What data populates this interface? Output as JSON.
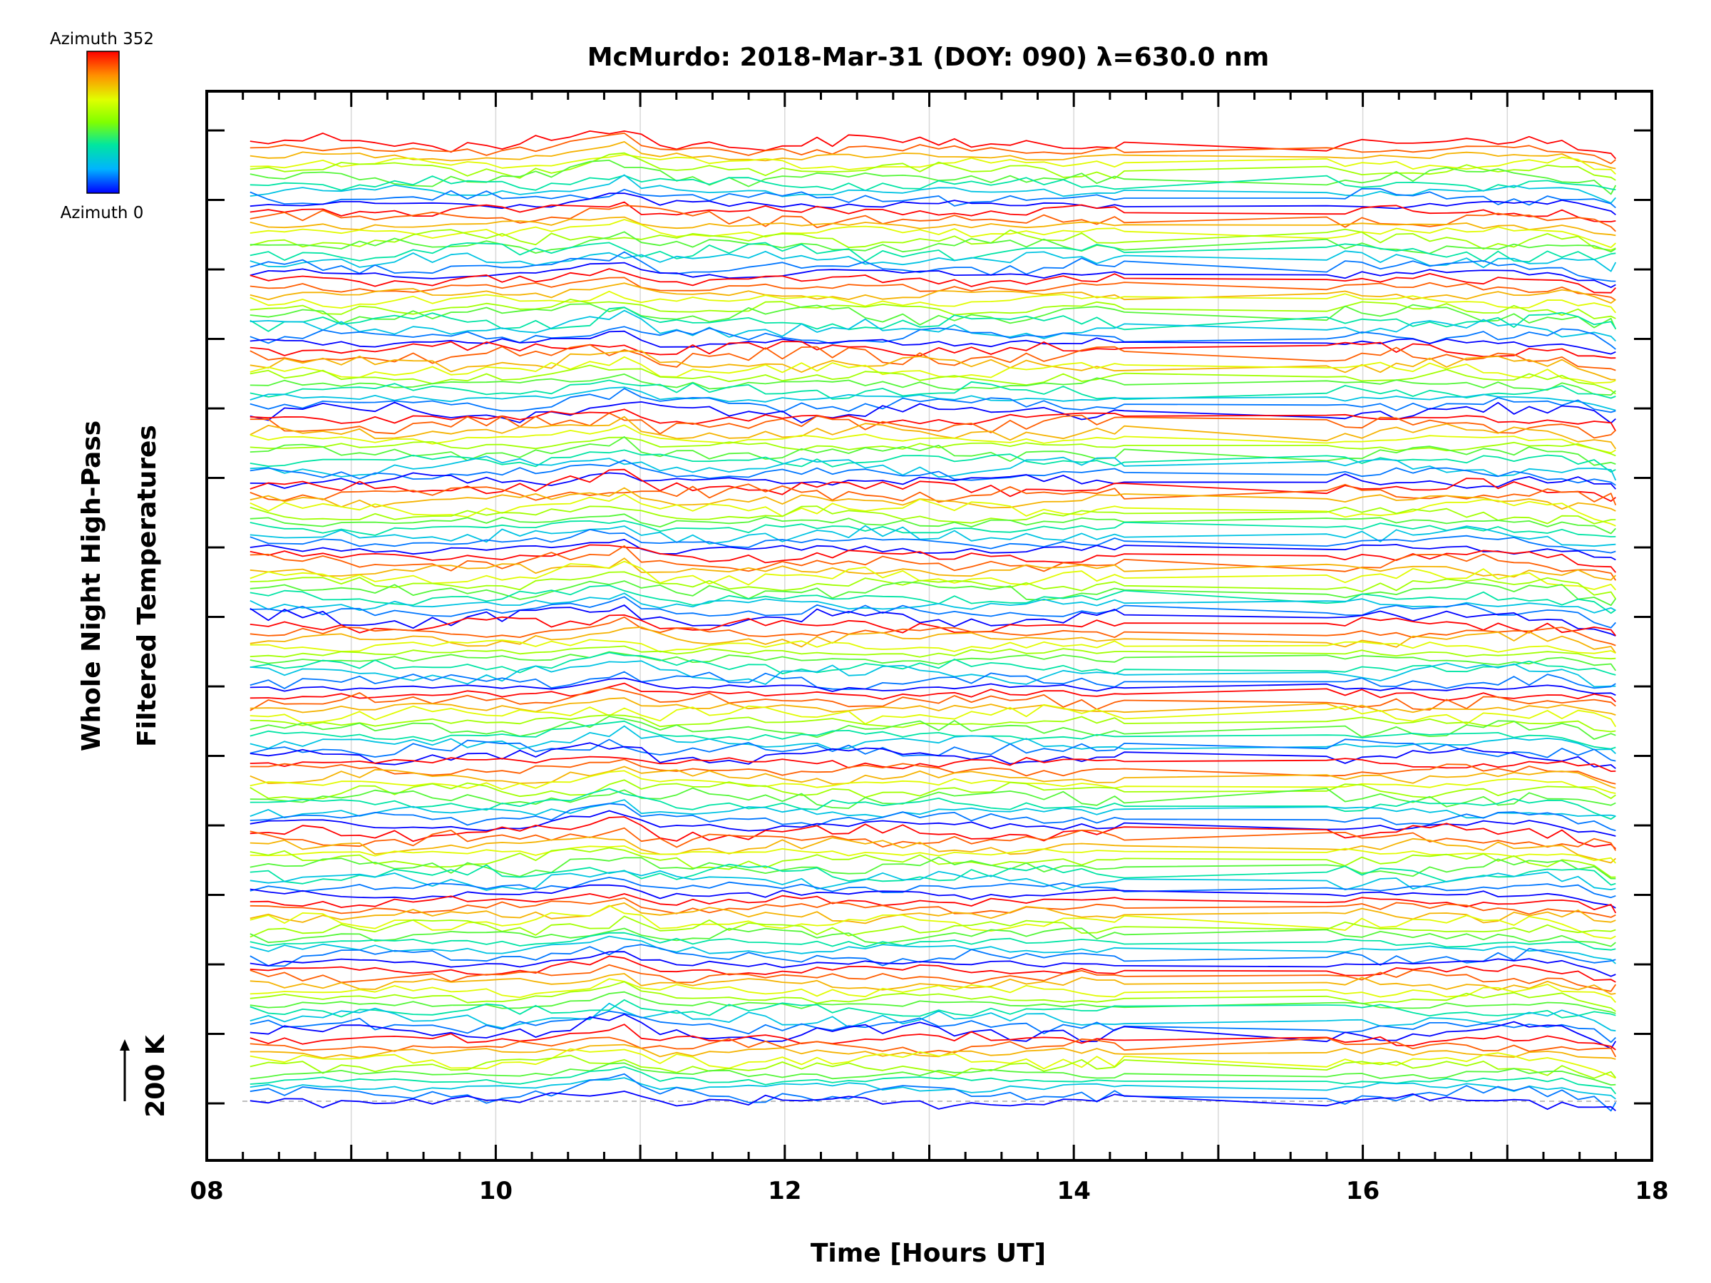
{
  "chart_data": {
    "type": "line",
    "title": "McMurdo: 2018-Mar-31 (DOY: 090) λ=630.0 nm",
    "xlabel": "Time [Hours UT]",
    "ylabel_line1": "Whole Night High-Pass",
    "ylabel_line2": "Filtered Temperatures",
    "scale_label": "200 K",
    "xlim": [
      8,
      18
    ],
    "x_ticks": [
      "08",
      "10",
      "12",
      "14",
      "16",
      "18"
    ],
    "x_tick_values": [
      8,
      10,
      12,
      14,
      16,
      18
    ],
    "grid_x": [
      9,
      10,
      11,
      12,
      13,
      14,
      15,
      16,
      17
    ],
    "time_start": 8.3,
    "time_end": 17.75,
    "data_gap": [
      14.35,
      15.75
    ],
    "colorbar": {
      "top_label": "Azimuth 352",
      "bottom_label": "Azimuth 0",
      "colors": [
        "#0000ff",
        "#00c8ff",
        "#00ff80",
        "#b0ff00",
        "#ffff00",
        "#ff8000",
        "#ff0000"
      ]
    },
    "series_groups": 14,
    "series_per_group": 10,
    "series_description": "140 stacked azimuth traces, each colored by azimuth (0 to 352 degrees), offset vertically for display"
  }
}
